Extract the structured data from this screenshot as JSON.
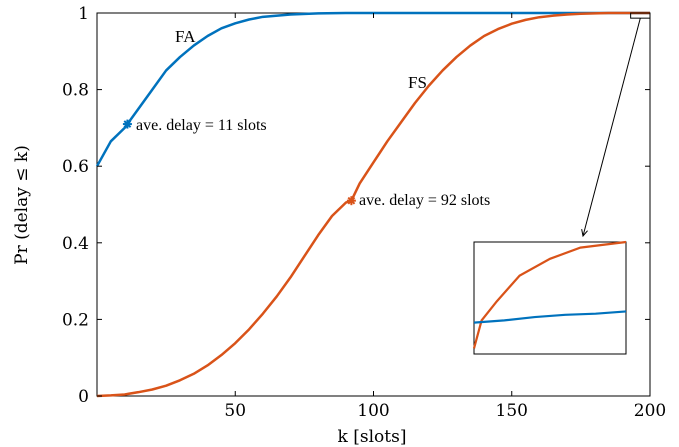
{
  "chart_data": {
    "type": "line",
    "xlabel": "k [slots]",
    "ylabel": "Pr (delay ≤ k)",
    "xlim": [
      0,
      200
    ],
    "ylim": [
      0,
      1
    ],
    "x_ticks": [
      50,
      100,
      150,
      200
    ],
    "y_ticks": [
      0,
      0.2,
      0.4,
      0.6,
      0.8,
      1
    ],
    "x_tick_labels": [
      "50",
      "100",
      "150",
      "200"
    ],
    "y_tick_labels": [
      "0",
      "0.2",
      "0.4",
      "0.6",
      "0.8",
      "1"
    ],
    "grid": false,
    "series": [
      {
        "name": "FA",
        "color": "#0072BD",
        "x": [
          0,
          5,
          10,
          11,
          15,
          20,
          25,
          30,
          35,
          40,
          45,
          50,
          55,
          60,
          70,
          80,
          90,
          100,
          120,
          150,
          200
        ],
        "y": [
          0.6,
          0.665,
          0.7,
          0.71,
          0.75,
          0.8,
          0.85,
          0.885,
          0.915,
          0.94,
          0.96,
          0.973,
          0.983,
          0.99,
          0.996,
          0.999,
          1.0,
          1.0,
          1.0,
          1.0,
          1.0
        ]
      },
      {
        "name": "FS",
        "color": "#D95319",
        "x": [
          0,
          5,
          10,
          15,
          20,
          25,
          30,
          35,
          40,
          45,
          50,
          55,
          60,
          65,
          70,
          75,
          80,
          85,
          90,
          92,
          95,
          100,
          105,
          110,
          115,
          120,
          125,
          130,
          135,
          140,
          145,
          150,
          155,
          160,
          165,
          170,
          175,
          180,
          185,
          190,
          200
        ],
        "y": [
          0.0,
          0.0015,
          0.004,
          0.01,
          0.017,
          0.027,
          0.041,
          0.058,
          0.08,
          0.107,
          0.138,
          0.174,
          0.215,
          0.26,
          0.31,
          0.365,
          0.42,
          0.47,
          0.505,
          0.51,
          0.555,
          0.61,
          0.665,
          0.715,
          0.765,
          0.81,
          0.85,
          0.885,
          0.915,
          0.94,
          0.958,
          0.972,
          0.982,
          0.989,
          0.993,
          0.996,
          0.998,
          0.999,
          1.0,
          1.0,
          1.0
        ]
      }
    ],
    "markers": [
      {
        "series": "FA",
        "x": 11,
        "y": 0.71,
        "label": "ave. delay = 11 slots"
      },
      {
        "series": "FS",
        "x": 92,
        "y": 0.51,
        "label": "ave. delay = 92 slots"
      }
    ],
    "inset": {
      "zoom_xlim": [
        193,
        200
      ],
      "zoom_ylim": [
        0.997,
        1.0
      ],
      "FA": [
        [
          0,
          0.28
        ],
        [
          0.2,
          0.3
        ],
        [
          0.4,
          0.33
        ],
        [
          0.6,
          0.35
        ],
        [
          0.8,
          0.36
        ],
        [
          1,
          0.38
        ]
      ],
      "FS": [
        [
          0,
          0.05
        ],
        [
          0.05,
          0.3
        ],
        [
          0.15,
          0.47
        ],
        [
          0.3,
          0.7
        ],
        [
          0.5,
          0.85
        ],
        [
          0.7,
          0.95
        ],
        [
          1,
          1.0
        ]
      ]
    }
  }
}
